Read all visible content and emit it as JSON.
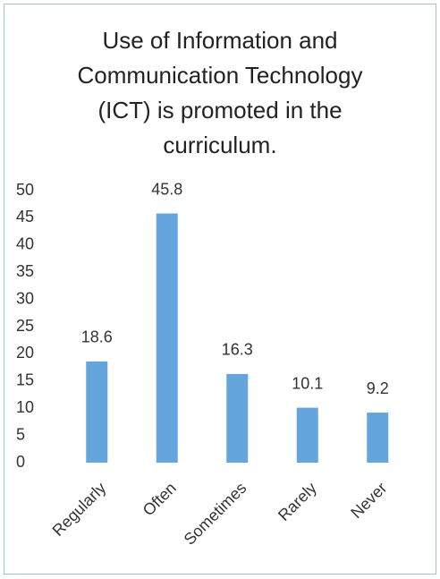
{
  "chart_data": {
    "type": "bar",
    "title": "Use of Information and Communication Technology (ICT) is promoted in the curriculum.",
    "categories": [
      "Regularly",
      "Often",
      "Sometimes",
      "Rarely",
      "Never"
    ],
    "values": [
      18.6,
      45.8,
      16.3,
      10.1,
      9.2
    ],
    "color": "#64a5de",
    "ylim": [
      0,
      50
    ],
    "yticks": [
      0,
      5,
      10,
      15,
      20,
      25,
      30,
      35,
      40,
      45,
      50
    ],
    "grid": false
  }
}
